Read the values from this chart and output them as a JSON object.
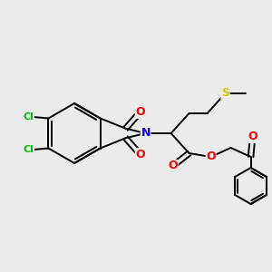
{
  "bg_color": "#ebebeb",
  "bond_color": "#000000",
  "atom_colors": {
    "N": "#0000ff",
    "O": "#ff0000",
    "Cl": "#00bb00",
    "S": "#cccc00",
    "C": "#000000"
  },
  "figsize": [
    3.0,
    3.0
  ],
  "dpi": 100
}
